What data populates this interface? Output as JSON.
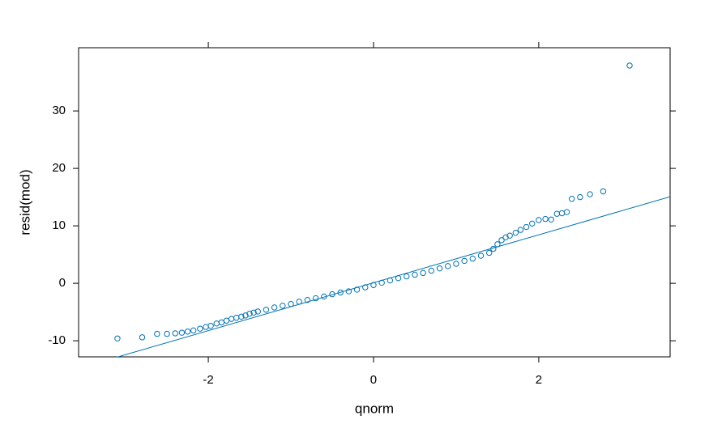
{
  "chart_data": {
    "type": "scatter",
    "xlabel": "qnorm",
    "ylabel": "resid(mod)",
    "x": [
      -3.1,
      -2.8,
      -2.62,
      -2.5,
      -2.4,
      -2.32,
      -2.25,
      -2.18,
      -2.1,
      -2.03,
      -1.97,
      -1.9,
      -1.84,
      -1.78,
      -1.72,
      -1.66,
      -1.6,
      -1.55,
      -1.5,
      -1.45,
      -1.4,
      -1.3,
      -1.2,
      -1.1,
      -1.0,
      -0.9,
      -0.8,
      -0.7,
      -0.6,
      -0.5,
      -0.4,
      -0.3,
      -0.2,
      -0.1,
      0,
      0.1,
      0.2,
      0.3,
      0.4,
      0.5,
      0.6,
      0.7,
      0.8,
      0.9,
      1.0,
      1.1,
      1.2,
      1.3,
      1.4,
      1.45,
      1.5,
      1.55,
      1.6,
      1.65,
      1.72,
      1.78,
      1.85,
      1.92,
      2.0,
      2.08,
      2.15,
      2.22,
      2.28,
      2.34,
      2.4,
      2.5,
      2.62,
      2.78,
      3.1
    ],
    "values": [
      -9.6,
      -9.4,
      -8.8,
      -8.8,
      -8.7,
      -8.6,
      -8.4,
      -8.2,
      -7.9,
      -7.6,
      -7.4,
      -7.0,
      -6.8,
      -6.5,
      -6.2,
      -6.0,
      -5.8,
      -5.6,
      -5.3,
      -5.1,
      -4.9,
      -4.6,
      -4.2,
      -3.9,
      -3.6,
      -3.2,
      -2.9,
      -2.6,
      -2.3,
      -1.9,
      -1.6,
      -1.4,
      -1.1,
      -0.7,
      -0.3,
      0.1,
      0.5,
      0.9,
      1.2,
      1.5,
      1.8,
      2.2,
      2.6,
      3.0,
      3.4,
      3.9,
      4.3,
      4.8,
      5.3,
      6.0,
      6.8,
      7.5,
      8.0,
      8.3,
      8.8,
      9.3,
      9.8,
      10.4,
      11.0,
      11.2,
      11.1,
      12.1,
      12.2,
      12.4,
      14.7,
      15.0,
      15.5,
      16.0,
      37.9
    ],
    "color": "#0072b2",
    "reference_line": {
      "intercept": 0.1,
      "slope": 4.17
    },
    "xlim": [
      -3.57,
      3.59
    ],
    "ylim": [
      -12.8,
      41.0
    ],
    "xticks": [
      -2,
      0,
      2
    ],
    "yticks": [
      -10,
      0,
      10,
      20,
      30
    ]
  }
}
